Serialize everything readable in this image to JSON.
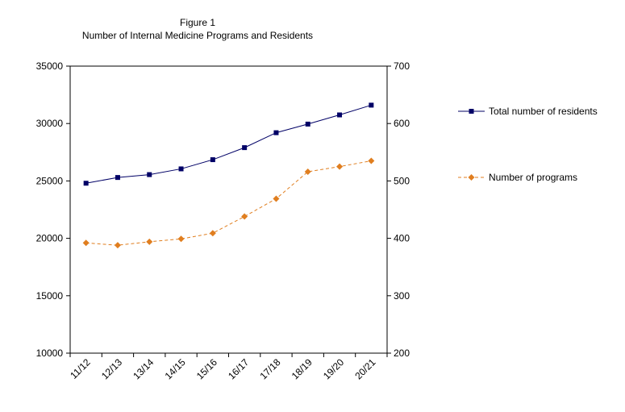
{
  "chart_data": {
    "type": "line",
    "title": "Figure 1",
    "subtitle": "Number of Internal Medicine Programs and Residents",
    "categories": [
      "11/12",
      "12/13",
      "13/14",
      "14/15",
      "15/16",
      "16/17",
      "17/18",
      "18/19",
      "19/20",
      "20/21"
    ],
    "y_left": {
      "range": [
        10000,
        35000
      ],
      "ticks": [
        "10000",
        "15000",
        "20000",
        "25000",
        "30000",
        "35000"
      ]
    },
    "y_right": {
      "range": [
        200,
        700
      ],
      "ticks": [
        "200",
        "300",
        "400",
        "500",
        "600",
        "700"
      ]
    },
    "grid": false,
    "legend_placement": "right",
    "series": [
      {
        "name": "Total number of residents",
        "axis": "left",
        "values": [
          24800,
          25300,
          25550,
          26050,
          26850,
          27900,
          29200,
          29950,
          30750,
          31600
        ],
        "color": "#000066",
        "line_style": "solid",
        "marker": "square"
      },
      {
        "name": "Number of programs",
        "axis": "right",
        "values": [
          392,
          388,
          394,
          399,
          409,
          438,
          469,
          516,
          525,
          535
        ],
        "color": "#E07E1F",
        "line_style": "dashed",
        "marker": "diamond"
      }
    ]
  }
}
